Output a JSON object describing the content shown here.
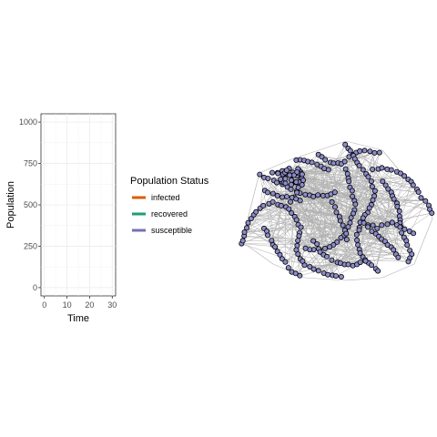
{
  "chart_data": [
    {
      "type": "line",
      "title": "",
      "xlabel": "Time",
      "ylabel": "Population",
      "xlim": [
        -1.5,
        31.5
      ],
      "ylim": [
        -50,
        1050
      ],
      "x_ticks": [
        "0",
        "10",
        "20",
        "30"
      ],
      "x_tick_values": [
        0,
        10,
        20,
        30
      ],
      "y_ticks": [
        "0",
        "250",
        "500",
        "750",
        "1000"
      ],
      "y_tick_values": [
        0,
        250,
        500,
        750,
        1000
      ],
      "grid": true,
      "series": []
    },
    {
      "type": "scatter",
      "title": "",
      "description_free": true,
      "node_fill": "#8c8cc8",
      "node_stroke": "#000000",
      "edge_color": "#b0b0b0",
      "nodes": "many nodes (~500), all susceptible"
    }
  ],
  "legend": {
    "title": "Population Status",
    "items": [
      {
        "label": "infected",
        "color": "#d95f02"
      },
      {
        "label": "recovered",
        "color": "#1b9e77"
      },
      {
        "label": "susceptible",
        "color": "#7570b3"
      }
    ]
  }
}
